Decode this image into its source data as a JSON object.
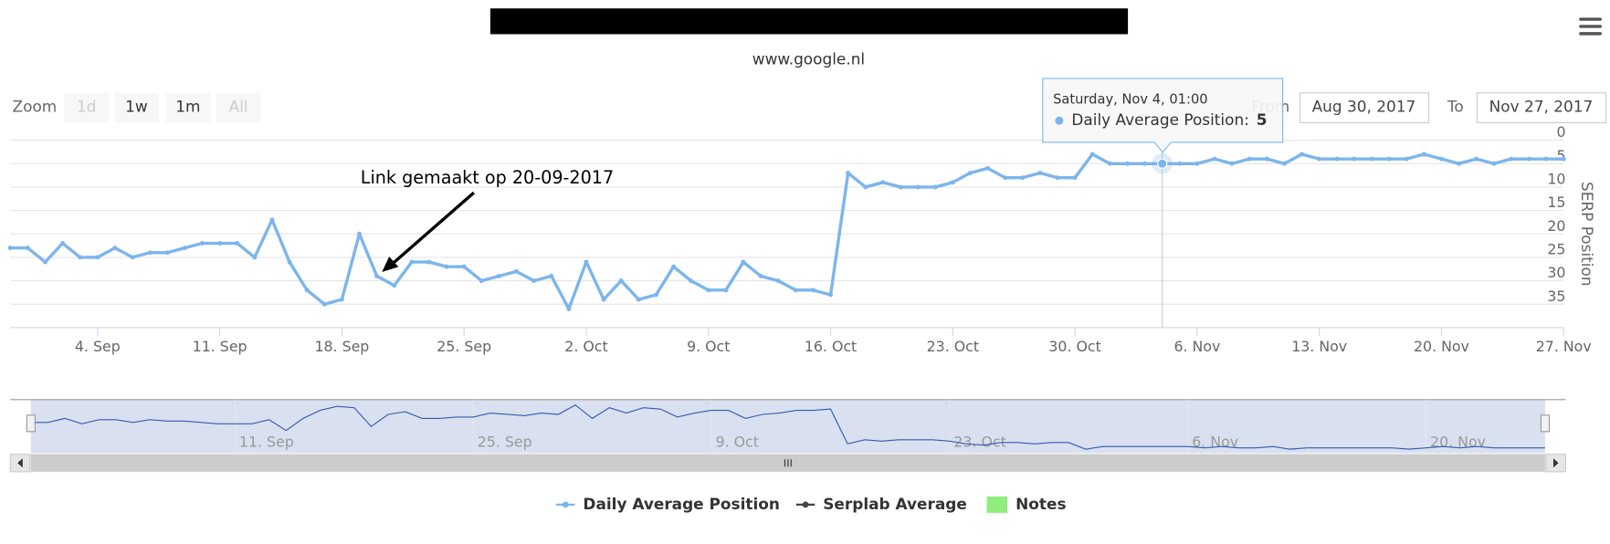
{
  "chart_data": {
    "type": "line",
    "subtitle": "www.google.nl",
    "y_axis_label": "SERP Position",
    "x": [
      "2017-08-30",
      "2017-08-31",
      "2017-09-01",
      "2017-09-02",
      "2017-09-03",
      "2017-09-04",
      "2017-09-05",
      "2017-09-06",
      "2017-09-07",
      "2017-09-08",
      "2017-09-09",
      "2017-09-10",
      "2017-09-11",
      "2017-09-12",
      "2017-09-13",
      "2017-09-14",
      "2017-09-15",
      "2017-09-16",
      "2017-09-17",
      "2017-09-18",
      "2017-09-19",
      "2017-09-20",
      "2017-09-21",
      "2017-09-22",
      "2017-09-23",
      "2017-09-24",
      "2017-09-25",
      "2017-09-26",
      "2017-09-27",
      "2017-09-28",
      "2017-09-29",
      "2017-09-30",
      "2017-10-01",
      "2017-10-02",
      "2017-10-03",
      "2017-10-04",
      "2017-10-05",
      "2017-10-06",
      "2017-10-07",
      "2017-10-08",
      "2017-10-09",
      "2017-10-10",
      "2017-10-11",
      "2017-10-12",
      "2017-10-13",
      "2017-10-14",
      "2017-10-15",
      "2017-10-16",
      "2017-10-17",
      "2017-10-18",
      "2017-10-19",
      "2017-10-20",
      "2017-10-21",
      "2017-10-22",
      "2017-10-23",
      "2017-10-24",
      "2017-10-25",
      "2017-10-26",
      "2017-10-27",
      "2017-10-28",
      "2017-10-29",
      "2017-10-30",
      "2017-10-31",
      "2017-11-01",
      "2017-11-02",
      "2017-11-03",
      "2017-11-04",
      "2017-11-05",
      "2017-11-06",
      "2017-11-07",
      "2017-11-08",
      "2017-11-09",
      "2017-11-10",
      "2017-11-11",
      "2017-11-12",
      "2017-11-13",
      "2017-11-14",
      "2017-11-15",
      "2017-11-16",
      "2017-11-17",
      "2017-11-18",
      "2017-11-19",
      "2017-11-20",
      "2017-11-21",
      "2017-11-22",
      "2017-11-23",
      "2017-11-24",
      "2017-11-25",
      "2017-11-26",
      "2017-11-27"
    ],
    "series": [
      {
        "name": "Daily Average Position",
        "color": "#7cb5ec",
        "values": [
          23,
          23,
          26,
          22,
          25,
          25,
          23,
          25,
          24,
          24,
          23,
          22,
          22,
          22,
          25,
          17,
          26,
          32,
          35,
          34,
          20,
          29,
          31,
          26,
          26,
          27,
          27,
          30,
          29,
          28,
          30,
          29,
          36,
          26,
          34,
          30,
          34,
          33,
          27,
          30,
          32,
          32,
          26,
          29,
          30,
          32,
          32,
          33,
          7,
          10,
          9,
          10,
          10,
          10,
          9,
          7,
          6,
          8,
          8,
          7,
          8,
          8,
          3,
          5,
          5,
          5,
          5,
          5,
          5,
          4,
          5,
          4,
          4,
          5,
          3,
          4,
          4,
          4,
          4,
          4,
          4,
          3,
          4,
          5,
          4,
          5,
          4,
          4,
          4,
          4
        ]
      }
    ],
    "legend_items": [
      {
        "name": "Serplab Average",
        "color": "#434348"
      },
      {
        "name": "Notes",
        "color": "#90ed7d"
      }
    ],
    "xlim": [
      "2017-08-30",
      "2017-11-27"
    ],
    "xticks": [
      {
        "value": "2017-09-04",
        "label": "4. Sep"
      },
      {
        "value": "2017-09-11",
        "label": "11. Sep"
      },
      {
        "value": "2017-09-18",
        "label": "18. Sep"
      },
      {
        "value": "2017-09-25",
        "label": "25. Sep"
      },
      {
        "value": "2017-10-02",
        "label": "2. Oct"
      },
      {
        "value": "2017-10-09",
        "label": "9. Oct"
      },
      {
        "value": "2017-10-16",
        "label": "16. Oct"
      },
      {
        "value": "2017-10-23",
        "label": "23. Oct"
      },
      {
        "value": "2017-10-30",
        "label": "30. Oct"
      },
      {
        "value": "2017-11-06",
        "label": "6. Nov"
      },
      {
        "value": "2017-11-13",
        "label": "13. Nov"
      },
      {
        "value": "2017-11-20",
        "label": "20. Nov"
      },
      {
        "value": "2017-11-27",
        "label": "27. Nov"
      }
    ],
    "navigator_xticks": [
      {
        "value": "2017-09-11",
        "label": "11. Sep"
      },
      {
        "value": "2017-09-25",
        "label": "25. Sep"
      },
      {
        "value": "2017-10-09",
        "label": "9. Oct"
      },
      {
        "value": "2017-10-23",
        "label": "23. Oct"
      },
      {
        "value": "2017-11-06",
        "label": "6. Nov"
      },
      {
        "value": "2017-11-20",
        "label": "20. Nov"
      }
    ],
    "ylim": [
      0,
      40
    ],
    "y_reversed": true,
    "yticks": [
      0,
      5,
      10,
      15,
      20,
      25,
      30,
      35
    ],
    "grid": true,
    "annotation": {
      "text": "Link gemaakt op 20-09-2017",
      "x": "2017-09-20"
    },
    "tooltip": {
      "header": "Saturday, Nov 4, 01:00",
      "index": 66
    },
    "range_selector": {
      "label": "Zoom",
      "buttons": [
        "1d",
        "1w",
        "1m",
        "All"
      ],
      "disabled": [
        true,
        false,
        false,
        true
      ],
      "from_label": "From",
      "from": "Aug 30, 2017",
      "to_label": "To",
      "to": "Nov 27, 2017"
    }
  }
}
